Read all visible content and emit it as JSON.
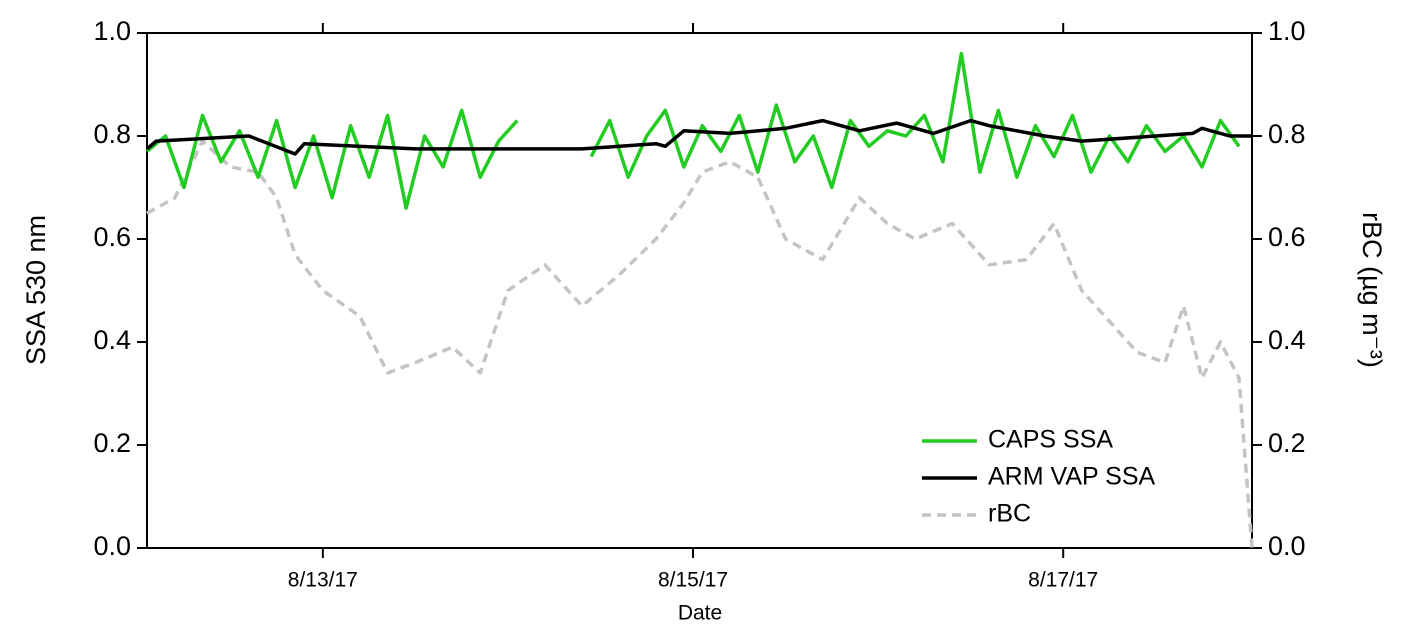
{
  "chart_data": {
    "type": "line",
    "xlabel": "Date",
    "ylabel": "SSA 530 nm",
    "y2label": "rBC (µg m⁻³)",
    "xlim": [
      12.05,
      18.02
    ],
    "xticks": [
      {
        "value": 13,
        "label": "8/13/17"
      },
      {
        "value": 15,
        "label": "8/15/17"
      },
      {
        "value": 17,
        "label": "8/17/17"
      }
    ],
    "ylim": [
      0,
      1
    ],
    "yticks": [
      {
        "value": 0,
        "label": "0.0"
      },
      0.2,
      0.4,
      0.6,
      0.8,
      {
        "value": 1,
        "label": "1.0"
      }
    ],
    "y2lim": [
      0,
      1
    ],
    "y2ticks": [
      {
        "value": 0,
        "label": "0.0"
      },
      0.2,
      0.4,
      0.6,
      0.8,
      {
        "value": 1,
        "label": "1.0"
      }
    ],
    "legend": "lower right",
    "series": [
      {
        "name": "CAPS SSA",
        "color": "#22cc22",
        "dash": false,
        "x": [
          12.05,
          12.15,
          12.25,
          12.35,
          12.45,
          12.55,
          12.65,
          12.75,
          12.85,
          12.95,
          13.05,
          13.15,
          13.25,
          13.35,
          13.45,
          13.55,
          13.65,
          13.75,
          13.85,
          13.95,
          14.05,
          14.25,
          14.45,
          14.55,
          14.65,
          14.75,
          14.85,
          14.95,
          15.05,
          15.15,
          15.25,
          15.35,
          15.45,
          15.55,
          15.65,
          15.75,
          15.85,
          15.95,
          16.05,
          16.15,
          16.25,
          16.35,
          16.45,
          16.55,
          16.65,
          16.75,
          16.85,
          16.95,
          17.05,
          17.15,
          17.25,
          17.35,
          17.45,
          17.55,
          17.65,
          17.75,
          17.85,
          17.95
        ],
        "values": [
          0.77,
          0.8,
          0.7,
          0.84,
          0.75,
          0.81,
          0.72,
          0.83,
          0.7,
          0.8,
          0.68,
          0.82,
          0.72,
          0.84,
          0.66,
          0.8,
          0.74,
          0.85,
          0.72,
          0.79,
          0.83,
          null,
          0.76,
          0.83,
          0.72,
          0.8,
          0.85,
          0.74,
          0.82,
          0.77,
          0.84,
          0.73,
          0.86,
          0.75,
          0.8,
          0.7,
          0.83,
          0.78,
          0.81,
          0.8,
          0.84,
          0.75,
          0.96,
          0.73,
          0.85,
          0.72,
          0.82,
          0.76,
          0.84,
          0.73,
          0.8,
          0.75,
          0.82,
          0.77,
          0.8,
          0.74,
          0.83,
          0.78
        ]
      },
      {
        "name": "ARM VAP SSA",
        "color": "#000000",
        "dash": false,
        "x": [
          12.05,
          12.1,
          12.6,
          12.85,
          12.9,
          13.5,
          14.4,
          14.8,
          14.85,
          14.95,
          15.2,
          15.5,
          15.7,
          15.9,
          16.1,
          16.3,
          16.5,
          16.6,
          16.9,
          17.1,
          17.5,
          17.7,
          17.75,
          17.9,
          18.02
        ],
        "values": [
          0.775,
          0.79,
          0.8,
          0.765,
          0.785,
          0.775,
          0.775,
          0.785,
          0.78,
          0.81,
          0.805,
          0.815,
          0.83,
          0.81,
          0.825,
          0.805,
          0.83,
          0.82,
          0.8,
          0.79,
          0.8,
          0.805,
          0.815,
          0.8,
          0.8
        ]
      },
      {
        "name": "rBC",
        "color": "#c4c4c4",
        "dash": true,
        "axis": "y2",
        "x": [
          12.05,
          12.2,
          12.35,
          12.5,
          12.65,
          12.75,
          12.85,
          13.0,
          13.2,
          13.35,
          13.5,
          13.7,
          13.85,
          14.0,
          14.2,
          14.4,
          14.6,
          14.8,
          14.95,
          15.05,
          15.2,
          15.35,
          15.5,
          15.7,
          15.9,
          16.05,
          16.2,
          16.4,
          16.6,
          16.8,
          16.95,
          17.1,
          17.25,
          17.4,
          17.55,
          17.65,
          17.75,
          17.85,
          17.95,
          18.02
        ],
        "values": [
          0.65,
          0.68,
          0.79,
          0.74,
          0.73,
          0.68,
          0.57,
          0.5,
          0.45,
          0.34,
          0.36,
          0.39,
          0.34,
          0.5,
          0.55,
          0.47,
          0.53,
          0.6,
          0.67,
          0.73,
          0.75,
          0.72,
          0.6,
          0.56,
          0.68,
          0.63,
          0.6,
          0.63,
          0.55,
          0.56,
          0.63,
          0.5,
          0.44,
          0.38,
          0.36,
          0.47,
          0.33,
          0.4,
          0.33,
          0.0
        ]
      }
    ]
  }
}
